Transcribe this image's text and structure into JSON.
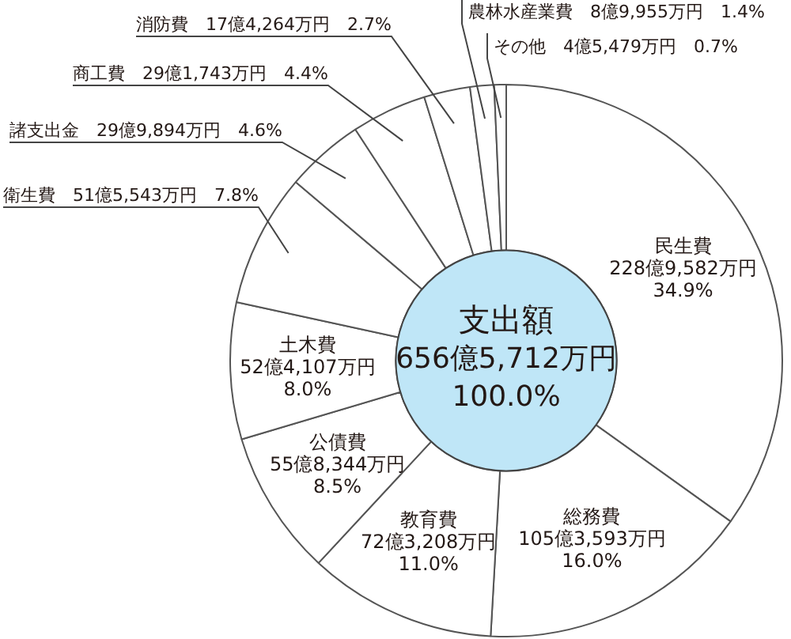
{
  "chart_data": {
    "type": "donut",
    "title": "支出額",
    "annotations": [
      "656億5,712万円",
      "100.0%"
    ],
    "categories": [
      "民生費",
      "総務費",
      "教育費",
      "公債費",
      "土木費",
      "衛生費",
      "諸支出金",
      "商工費",
      "消防費",
      "農林水産業費",
      "その他"
    ],
    "values": [
      34.9,
      16.0,
      11.0,
      8.5,
      8.0,
      7.8,
      4.6,
      4.4,
      2.7,
      1.4,
      0.7
    ],
    "value_labels": [
      "228億9,582万円\n34.9%",
      "105億3,593万円\n16.0%",
      "72億3,208万円\n11.0%",
      "55億8,344万円\n8.5%",
      "52億4,107万円\n8.0%",
      "51億5,543万円\n7.8%",
      "29億9,894万円\n4.6%",
      "29億1,743万円\n4.4%",
      "17億4,264万円\n2.7%",
      "8億9,955万円\n1.4%",
      "4億5,479万円\n0.7%"
    ],
    "colors": [
      "#ffffff",
      "#ffffff",
      "#ffffff",
      "#ffffff",
      "#ffffff",
      "#ffffff",
      "#ffffff",
      "#ffffff",
      "#ffffff",
      "#ffffff",
      "#ffffff"
    ]
  }
}
